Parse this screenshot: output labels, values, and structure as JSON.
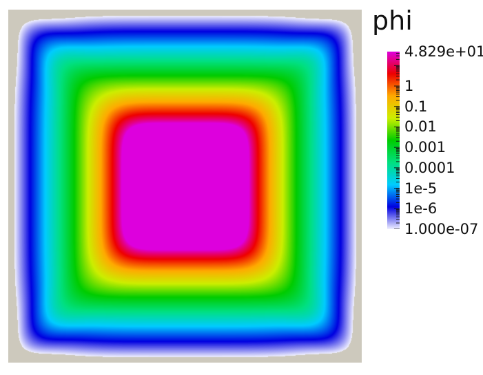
{
  "legend": {
    "title": "phi",
    "scale": "log",
    "range": [
      1e-07,
      48.29
    ],
    "labels": [
      {
        "text": "4.829e+01",
        "value": 48.29
      },
      {
        "text": "1",
        "value": 1
      },
      {
        "text": "0.1",
        "value": 0.1
      },
      {
        "text": "0.01",
        "value": 0.01
      },
      {
        "text": "0.001",
        "value": 0.001
      },
      {
        "text": "0.0001",
        "value": 0.0001
      },
      {
        "text": "1e-5",
        "value": 1e-05
      },
      {
        "text": "1e-6",
        "value": 1e-06
      },
      {
        "text": "1.000e-07",
        "value": 1e-07
      }
    ]
  },
  "colors": {
    "background": "#ffffff",
    "domain_background": "#cdc9bd",
    "colormap": [
      "#f0f0ff",
      "#0000e0",
      "#00ccff",
      "#00e080",
      "#00cc00",
      "#ccee00",
      "#ffaa00",
      "#ee0000",
      "#dd00dd"
    ]
  }
}
